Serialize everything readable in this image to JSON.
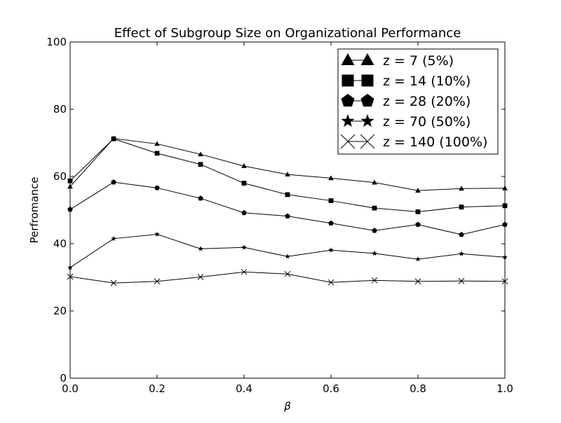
{
  "chart_data": {
    "type": "line",
    "title": "Effect of Subgroup Size on Organizational Performance",
    "xlabel": "β",
    "ylabel": "Perfromance",
    "xlim": [
      0.0,
      1.0
    ],
    "ylim": [
      0,
      100
    ],
    "x_ticks": [
      "0.0",
      "0.2",
      "0.4",
      "0.6",
      "0.8",
      "1.0"
    ],
    "y_ticks": [
      "0",
      "20",
      "40",
      "60",
      "80",
      "100"
    ],
    "grid": false,
    "legend_position": "top-right",
    "x": [
      0.0,
      0.1,
      0.2,
      0.3,
      0.4,
      0.5,
      0.6,
      0.7,
      0.8,
      0.9,
      1.0
    ],
    "series": [
      {
        "name": "z = 7 (5%)",
        "marker": "triangle",
        "values": [
          57.0,
          71.3,
          69.7,
          66.6,
          63.1,
          60.6,
          59.5,
          58.2,
          55.8,
          56.4,
          56.5
        ]
      },
      {
        "name": "z = 14 (10%)",
        "marker": "square",
        "values": [
          58.7,
          71.2,
          66.9,
          63.6,
          58.0,
          54.6,
          52.8,
          50.6,
          49.5,
          50.9,
          51.3
        ]
      },
      {
        "name": "z = 28 (20%)",
        "marker": "pentagon",
        "values": [
          50.2,
          58.3,
          56.6,
          53.5,
          49.2,
          48.2,
          46.1,
          43.9,
          45.7,
          42.7,
          45.7
        ]
      },
      {
        "name": "z = 70 (50%)",
        "marker": "star",
        "values": [
          32.9,
          41.5,
          42.8,
          38.5,
          38.9,
          36.2,
          38.1,
          37.1,
          35.4,
          37.0,
          36.0
        ]
      },
      {
        "name": "z = 140 (100%)",
        "marker": "x",
        "values": [
          30.2,
          28.3,
          28.8,
          30.1,
          31.6,
          31.0,
          28.5,
          29.1,
          28.8,
          28.9,
          28.8
        ]
      }
    ]
  }
}
